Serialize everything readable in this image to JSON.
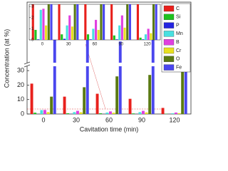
{
  "chart_data": {
    "type": "bar",
    "xlabel": "Cavitation time (min)",
    "ylabel": "Concentration (at %)",
    "categories": [
      "0",
      "30",
      "60",
      "90",
      "120"
    ],
    "series": [
      {
        "name": "C",
        "color": "#e8201c",
        "values": [
          21,
          12,
          14,
          10.5,
          4.2
        ]
      },
      {
        "name": "Si",
        "color": "#1ec21e",
        "values": [
          0.9,
          0.5,
          0.5,
          0.4,
          0.2
        ]
      },
      {
        "name": "P",
        "color": "#2424e0",
        "values": [
          0.05,
          0.1,
          0.05,
          0.05,
          0.05
        ]
      },
      {
        "name": "Mn",
        "color": "#48e0e0",
        "values": [
          2.7,
          1.3,
          1.0,
          1.3,
          0.5
        ]
      },
      {
        "name": "B",
        "color": "#e040e0",
        "values": [
          2.8,
          2.2,
          1.8,
          2.2,
          1.0
        ]
      },
      {
        "name": "Cr",
        "color": "#e8e020",
        "values": [
          1.3,
          1.2,
          0.9,
          1.1,
          0.6
        ]
      },
      {
        "name": "O",
        "color": "#5a7a12",
        "values": [
          12,
          18.5,
          26,
          27,
          32
        ]
      },
      {
        "name": "Fe",
        "color": "#4a46ee",
        "values": [
          62,
          66,
          57,
          60,
          62
        ]
      }
    ],
    "ylim": [
      0,
      33
    ],
    "yticks": [
      0,
      10,
      20,
      30
    ],
    "upper_ylim": [
      50,
      70
    ],
    "inset": {
      "ylim": [
        0,
        3.2
      ],
      "yticks": [
        0,
        1,
        2,
        3
      ]
    }
  }
}
